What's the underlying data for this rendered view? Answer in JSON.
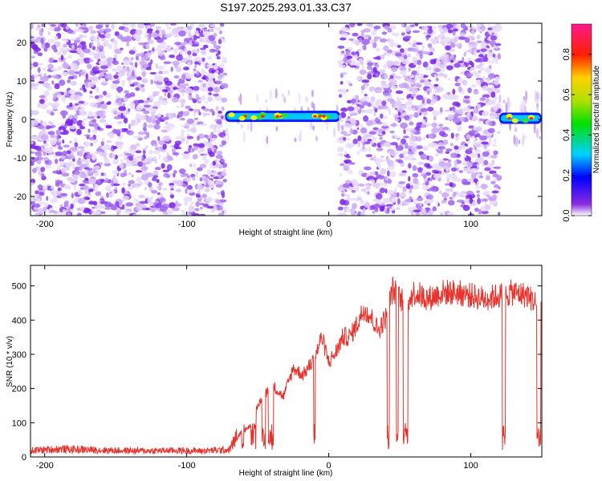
{
  "title": "S197.2025.293.01.33.C37",
  "chart_data": [
    {
      "type": "heatmap",
      "xlabel": "Height of straight line (km)",
      "ylabel": "Frequency (Hz)",
      "xlim": [
        -210,
        150
      ],
      "ylim": [
        -25,
        25
      ],
      "xticks": [
        -200,
        -100,
        0,
        100
      ],
      "yticks": [
        -20,
        -10,
        0,
        10,
        20
      ],
      "colorbar": {
        "label": "Normalized spectral amplitude",
        "range": [
          0.0,
          0.95
        ],
        "ticks": [
          0.0,
          0.2,
          0.4,
          0.6,
          0.8
        ]
      },
      "regions": [
        {
          "x": [
            -210,
            -73
          ],
          "kind": "noise"
        },
        {
          "x": [
            -73,
            8
          ],
          "kind": "signal",
          "freq": 0.8
        },
        {
          "x": [
            8,
            120
          ],
          "kind": "noise"
        },
        {
          "x": [
            120,
            150
          ],
          "kind": "signal",
          "freq": 0.3
        }
      ]
    },
    {
      "type": "line",
      "xlabel": "Height of straight line (km)",
      "ylabel": "SNR (10 * v/v)",
      "xlim": [
        -210,
        150
      ],
      "ylim": [
        0,
        560
      ],
      "xticks": [
        -200,
        -100,
        0,
        100
      ],
      "yticks": [
        0,
        100,
        200,
        300,
        400,
        500
      ],
      "color": "#e8312a",
      "x": [
        -210,
        -190,
        -170,
        -150,
        -130,
        -110,
        -90,
        -70,
        -62,
        -55,
        -48,
        -40,
        -32,
        -25,
        -18,
        -10,
        -5,
        0,
        5,
        10,
        15,
        20,
        25,
        30,
        35,
        40,
        45,
        50,
        55,
        60,
        70,
        80,
        90,
        100,
        110,
        120,
        130,
        140,
        150
      ],
      "values": [
        18,
        22,
        20,
        18,
        17,
        18,
        17,
        20,
        75,
        100,
        180,
        230,
        190,
        280,
        260,
        310,
        380,
        300,
        330,
        380,
        380,
        420,
        470,
        440,
        400,
        440,
        530,
        500,
        490,
        520,
        500,
        520,
        520,
        510,
        500,
        510,
        520,
        510,
        470
      ]
    }
  ]
}
